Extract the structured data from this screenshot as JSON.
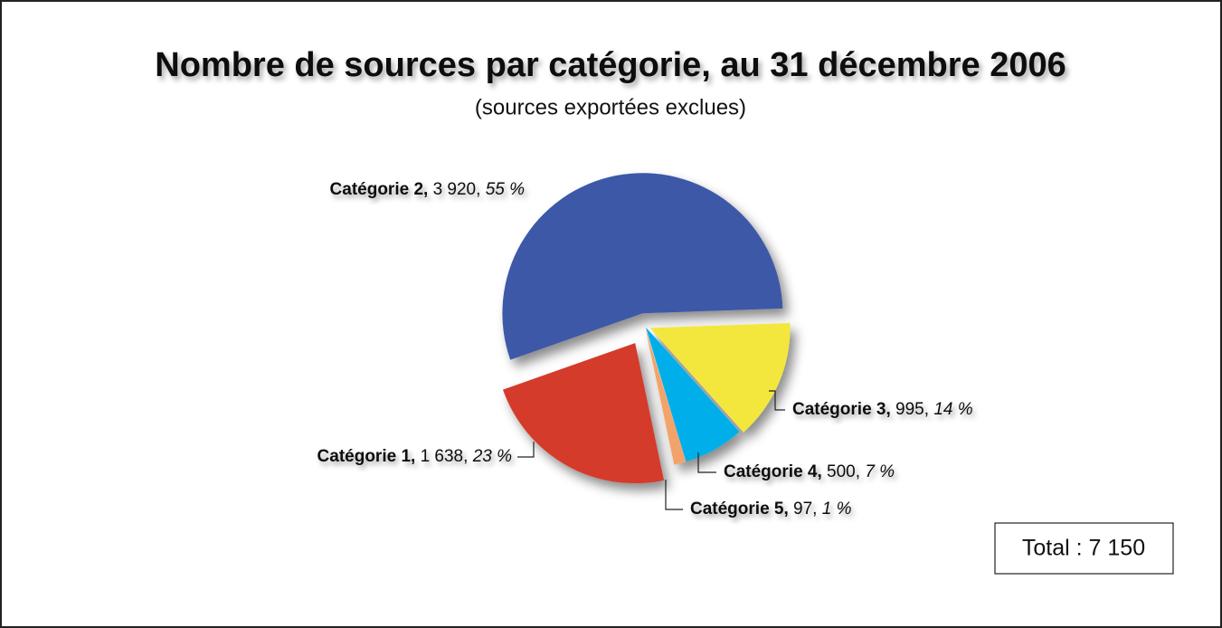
{
  "chart_data": {
    "type": "pie",
    "title": "Nombre de sources par catégorie, au 31 décembre 2006",
    "subtitle": "(sources exportées exclues)",
    "categories": [
      "Catégorie 3,",
      "Catégorie 4,",
      "Catégorie 5,",
      "Catégorie 1,",
      "Catégorie 2,"
    ],
    "values": [
      995,
      500,
      97,
      1638,
      3920
    ],
    "value_labels": [
      "995,",
      "500,",
      "97,",
      "1 638,",
      "3 920,"
    ],
    "percent": [
      14,
      7,
      1,
      23,
      55
    ],
    "percent_labels": [
      "14 %",
      "7 %",
      "1 %",
      "23 %",
      "55 %"
    ],
    "colors": [
      "#f3e73c",
      "#00aee9",
      "#f2a36b",
      "#d43a29",
      "#3e59a7"
    ],
    "annotations": [
      "Total : 7 150"
    ]
  }
}
